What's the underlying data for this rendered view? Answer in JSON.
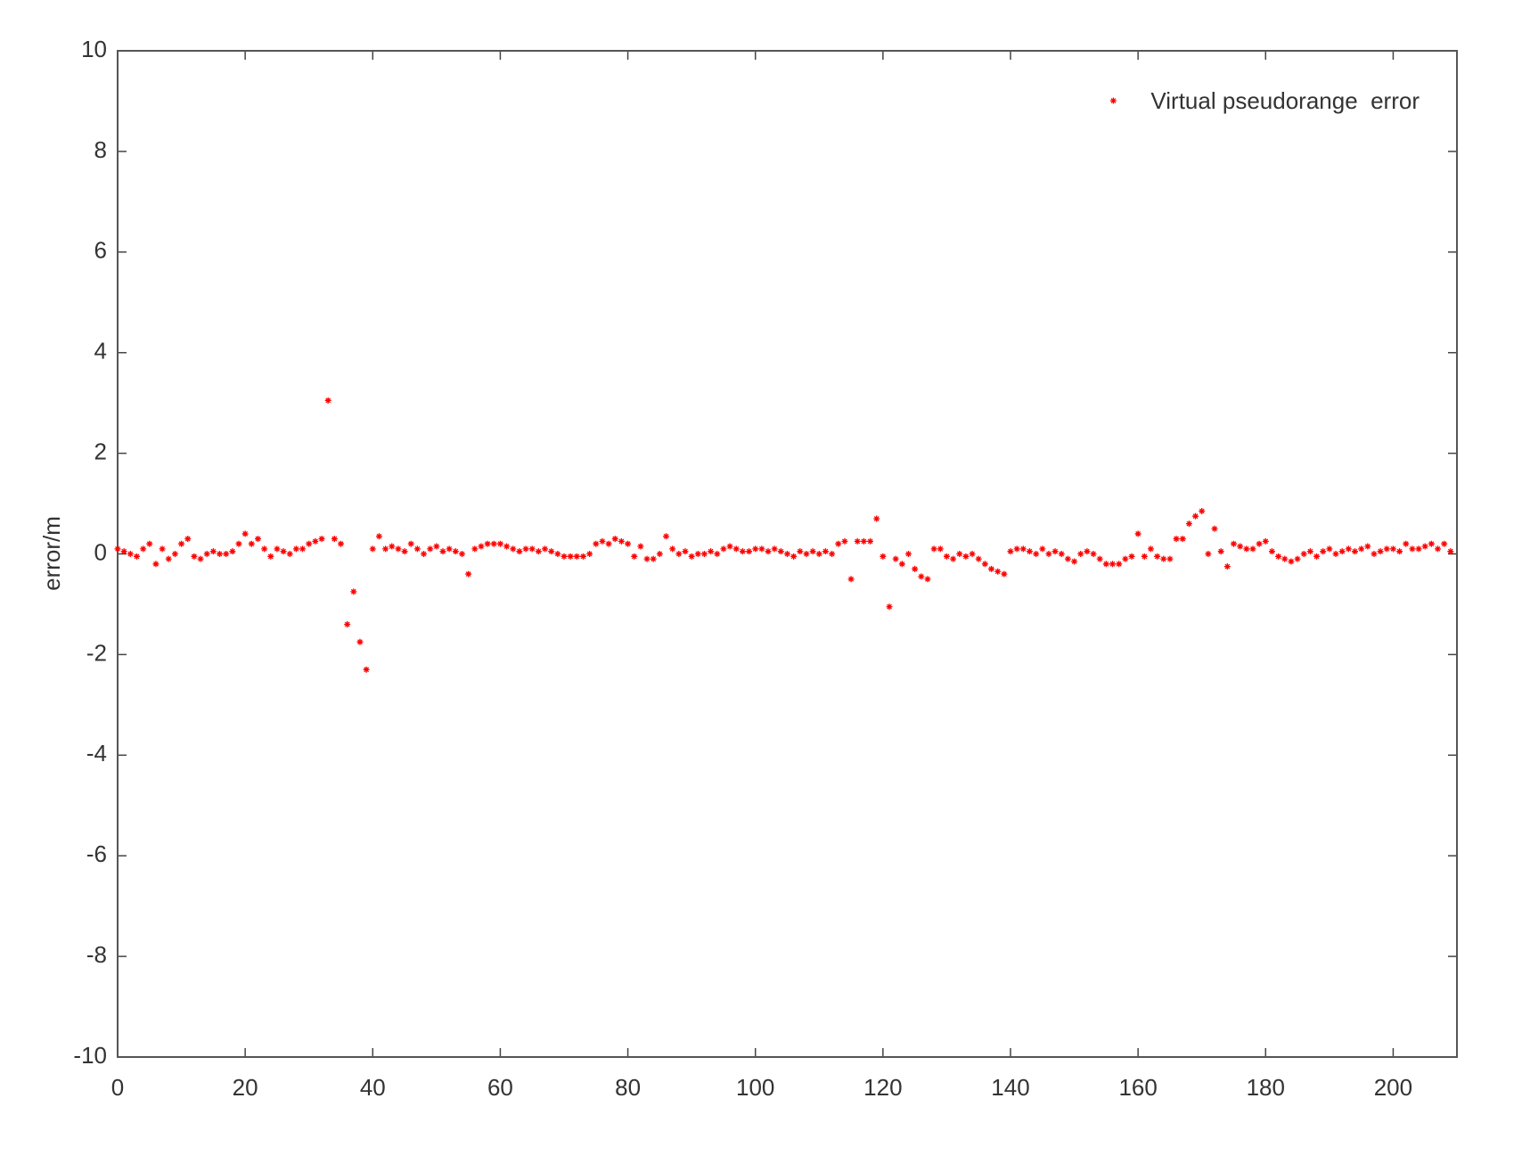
{
  "chart_data": {
    "type": "scatter",
    "ylabel": "error/m",
    "xlim": [
      0,
      210
    ],
    "ylim": [
      -10,
      10
    ],
    "xticks": [
      0,
      20,
      40,
      60,
      80,
      100,
      120,
      140,
      160,
      180,
      200
    ],
    "yticks": [
      -10,
      -8,
      -6,
      -4,
      -2,
      0,
      2,
      4,
      6,
      8,
      10
    ],
    "grid": false,
    "legend": "upper right",
    "x": [
      0,
      1,
      2,
      3,
      4,
      5,
      6,
      7,
      8,
      9,
      10,
      11,
      12,
      13,
      14,
      15,
      16,
      17,
      18,
      19,
      20,
      21,
      22,
      23,
      24,
      25,
      26,
      27,
      28,
      29,
      30,
      31,
      32,
      33,
      34,
      35,
      36,
      37,
      38,
      39,
      40,
      41,
      42,
      43,
      44,
      45,
      46,
      47,
      48,
      49,
      50,
      51,
      52,
      53,
      54,
      55,
      56,
      57,
      58,
      59,
      60,
      61,
      62,
      63,
      64,
      65,
      66,
      67,
      68,
      69,
      70,
      71,
      72,
      73,
      74,
      75,
      76,
      77,
      78,
      79,
      80,
      81,
      82,
      83,
      84,
      85,
      86,
      87,
      88,
      89,
      90,
      91,
      92,
      93,
      94,
      95,
      96,
      97,
      98,
      99,
      100,
      101,
      102,
      103,
      104,
      105,
      106,
      107,
      108,
      109,
      110,
      111,
      112,
      113,
      114,
      115,
      116,
      117,
      118,
      119,
      120,
      121,
      122,
      123,
      124,
      125,
      126,
      127,
      128,
      129,
      130,
      131,
      132,
      133,
      134,
      135,
      136,
      137,
      138,
      139,
      140,
      141,
      142,
      143,
      144,
      145,
      146,
      147,
      148,
      149,
      150,
      151,
      152,
      153,
      154,
      155,
      156,
      157,
      158,
      159,
      160,
      161,
      162,
      163,
      164,
      165,
      166,
      167,
      168,
      169,
      170,
      171,
      172,
      173,
      174,
      175,
      176,
      177,
      178,
      179,
      180,
      181,
      182,
      183,
      184,
      185,
      186,
      187,
      188,
      189,
      190,
      191,
      192,
      193,
      194,
      195,
      196,
      197,
      198,
      199,
      200,
      201,
      202,
      203,
      204,
      205,
      206,
      207,
      208,
      209
    ],
    "series": [
      {
        "name": "Virtual pseudorange  error",
        "color": "#ff0000",
        "values": [
          0.1,
          0.05,
          0,
          -0.05,
          0.1,
          0.2,
          -0.2,
          0.1,
          -0.1,
          0,
          0.2,
          0.3,
          -0.05,
          -0.1,
          0,
          0.05,
          0,
          0,
          0.05,
          0.2,
          0.4,
          0.2,
          0.3,
          0.1,
          -0.05,
          0.1,
          0.05,
          0,
          0.1,
          0.1,
          0.2,
          0.25,
          0.3,
          3.05,
          0.3,
          0.2,
          -1.4,
          -0.75,
          -1.75,
          -2.3,
          0.1,
          0.35,
          0.1,
          0.15,
          0.1,
          0.05,
          0.2,
          0.1,
          0,
          0.1,
          0.15,
          0.05,
          0.1,
          0.05,
          0,
          -0.4,
          0.1,
          0.15,
          0.2,
          0.2,
          0.2,
          0.15,
          0.1,
          0.05,
          0.1,
          0.1,
          0.05,
          0.1,
          0.05,
          0,
          -0.05,
          -0.05,
          -0.05,
          -0.05,
          0,
          0.2,
          0.25,
          0.2,
          0.3,
          0.25,
          0.2,
          -0.05,
          0.15,
          -0.1,
          -0.1,
          0,
          0.35,
          0.1,
          0,
          0.05,
          -0.05,
          0,
          0,
          0.05,
          0,
          0.1,
          0.15,
          0.1,
          0.05,
          0.05,
          0.1,
          0.1,
          0.05,
          0.1,
          0.05,
          0,
          -0.05,
          0.05,
          0,
          0.05,
          0,
          0.05,
          0,
          0.2,
          0.25,
          -0.5,
          0.25,
          0.25,
          0.25,
          0.7,
          -0.05,
          -1.05,
          -0.1,
          -0.2,
          0,
          -0.3,
          -0.45,
          -0.5,
          0.1,
          0.1,
          -0.05,
          -0.1,
          0,
          -0.05,
          0,
          -0.1,
          -0.2,
          -0.3,
          -0.35,
          -0.4,
          0.05,
          0.1,
          0.1,
          0.05,
          0,
          0.1,
          0,
          0.05,
          0,
          -0.1,
          -0.15,
          0,
          0.05,
          0,
          -0.1,
          -0.2,
          -0.2,
          -0.2,
          -0.1,
          -0.05,
          0.4,
          -0.05,
          0.1,
          -0.05,
          -0.1,
          -0.1,
          0.3,
          0.3,
          0.6,
          0.75,
          0.85,
          0,
          0.5,
          0.05,
          -0.25,
          0.2,
          0.15,
          0.1,
          0.1,
          0.2,
          0.25,
          0.05,
          -0.05,
          -0.1,
          -0.15,
          -0.1,
          0,
          0.05,
          -0.05,
          0.05,
          0.1,
          0,
          0.05,
          0.1,
          0.05,
          0.1,
          0.15,
          0,
          0.05,
          0.1,
          0.1,
          0.05,
          0.2,
          0.1,
          0.1,
          0.15,
          0.2,
          0.1,
          0.2,
          0.05
        ]
      }
    ]
  }
}
